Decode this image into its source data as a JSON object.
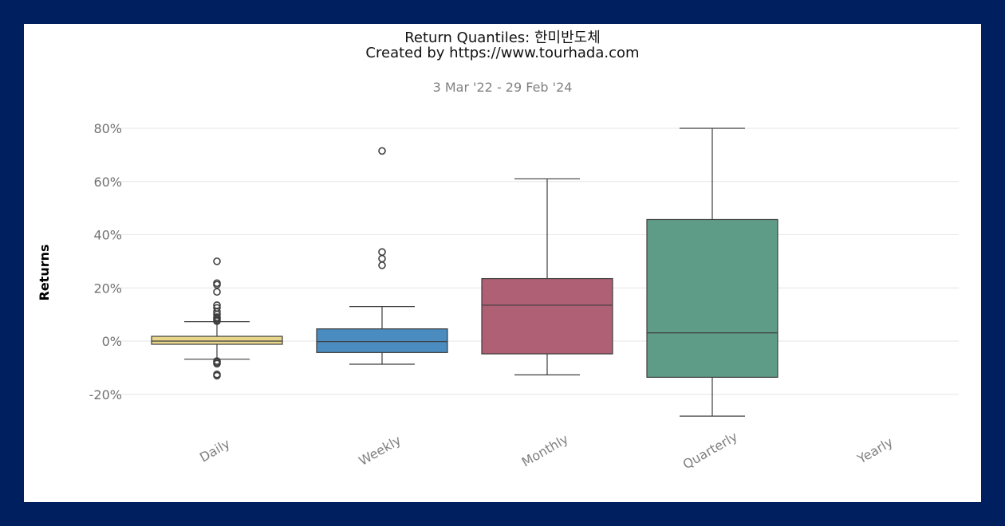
{
  "chart_data": {
    "type": "box",
    "title": "Return Quantiles: 한미반도체",
    "subtitle": "Created by https://www.tourhada.com",
    "date_range": "3 Mar '22 - 29 Feb '24",
    "ylabel": "Returns",
    "xlabel": "",
    "ylim": [
      -33,
      82
    ],
    "yticks": [
      -20,
      0,
      20,
      40,
      60,
      80
    ],
    "ytick_labels": [
      "-20%",
      "0%",
      "20%",
      "40%",
      "60%",
      "80%"
    ],
    "grid": "horizontal",
    "categories": [
      "Daily",
      "Weekly",
      "Monthly",
      "Quarterly",
      "Yearly"
    ],
    "series": [
      {
        "name": "Daily",
        "color": "#e8d68a",
        "whisker_low": -6.8,
        "q1": -1.2,
        "median": 0.0,
        "q3": 1.8,
        "whisker_high": 7.3,
        "outliers": [
          30.0,
          21.8,
          21.2,
          18.5,
          13.5,
          12.5,
          11.0,
          10.0,
          9.0,
          8.5,
          8.0,
          7.5,
          -7.5,
          -8.0,
          -8.5,
          -12.5,
          -13.0
        ]
      },
      {
        "name": "Weekly",
        "color": "#4a8cbf",
        "whisker_low": -8.7,
        "q1": -4.3,
        "median": -0.2,
        "q3": 4.6,
        "whisker_high": 13.0,
        "outliers": [
          71.5,
          33.5,
          31.0,
          28.5
        ]
      },
      {
        "name": "Monthly",
        "color": "#b06075",
        "whisker_low": -12.7,
        "q1": -4.8,
        "median": 13.5,
        "q3": 23.5,
        "whisker_high": 61.0,
        "outliers": []
      },
      {
        "name": "Quarterly",
        "color": "#5f9c88",
        "whisker_low": -28.2,
        "q1": -13.6,
        "median": 3.1,
        "q3": 45.7,
        "whisker_high": 80.0,
        "outliers": []
      },
      {
        "name": "Yearly",
        "color": "#ffffff",
        "whisker_low": null,
        "q1": null,
        "median": null,
        "q3": null,
        "whisker_high": null,
        "outliers": []
      }
    ]
  }
}
